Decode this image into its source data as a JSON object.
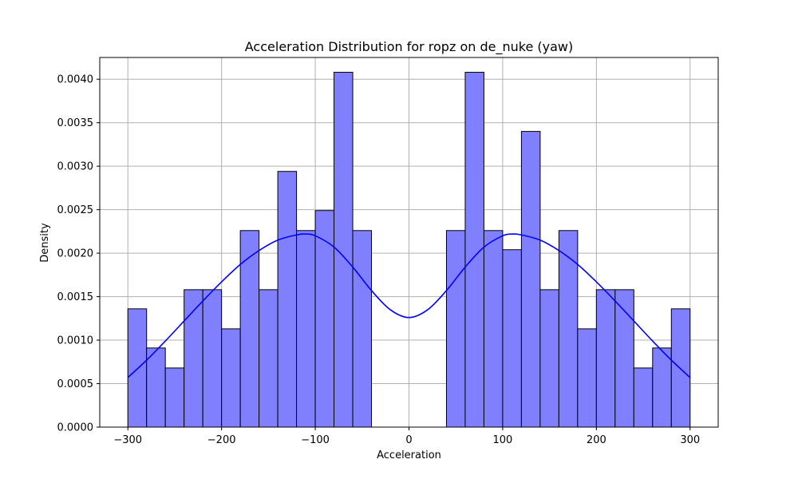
{
  "chart_data": {
    "type": "bar",
    "title": "Acceleration Distribution for ropz on de_nuke (yaw)",
    "xlabel": "Acceleration",
    "ylabel": "Density",
    "xlim": [
      -330,
      330
    ],
    "ylim": [
      0,
      0.00425
    ],
    "grid": true,
    "x_ticks": [
      -300,
      -200,
      -100,
      0,
      100,
      200,
      300
    ],
    "x_tick_labels": [
      "−300",
      "−200",
      "−100",
      "0",
      "100",
      "200",
      "300"
    ],
    "y_ticks": [
      0,
      0.0005,
      0.001,
      0.0015,
      0.002,
      0.0025,
      0.003,
      0.0035,
      0.004
    ],
    "y_tick_labels": [
      "0.0000",
      "0.0005",
      "0.0010",
      "0.0015",
      "0.0020",
      "0.0025",
      "0.0030",
      "0.0035",
      "0.0040"
    ],
    "histogram": {
      "bin_edges": [
        -300,
        -280,
        -260,
        -240,
        -220,
        -200,
        -180,
        -160,
        -140,
        -120,
        -100,
        -80,
        -60,
        -40,
        -20,
        0,
        20,
        40,
        60,
        80,
        100,
        120,
        140,
        160,
        180,
        200,
        220,
        240,
        260,
        280,
        300
      ],
      "values": [
        0.00136,
        0.00091,
        0.00068,
        0.00158,
        0.00158,
        0.00113,
        0.00226,
        0.00158,
        0.00294,
        0.00226,
        0.00249,
        0.00408,
        0.00226,
        0,
        0,
        0,
        0,
        0.00226,
        0.00408,
        0.00226,
        0.00204,
        0.0034,
        0.00158,
        0.00226,
        0.00113,
        0.00158,
        0.00158,
        0.00068,
        0.00091,
        0.00136
      ],
      "fill_color": "#8080ff",
      "edge_color": "#000000"
    },
    "kde": {
      "x": [
        -300,
        -280,
        -260,
        -240,
        -220,
        -200,
        -180,
        -160,
        -140,
        -120,
        -110,
        -100,
        -80,
        -60,
        -40,
        -20,
        0,
        20,
        40,
        60,
        80,
        100,
        110,
        120,
        140,
        160,
        180,
        200,
        220,
        240,
        260,
        280,
        300
      ],
      "y": [
        0.00057,
        0.00077,
        0.00099,
        0.00122,
        0.00145,
        0.00167,
        0.00187,
        0.00203,
        0.00215,
        0.00221,
        0.00222,
        0.0022,
        0.00207,
        0.00184,
        0.00157,
        0.00135,
        0.00126,
        0.00135,
        0.00157,
        0.00184,
        0.00207,
        0.0022,
        0.00222,
        0.00221,
        0.00215,
        0.00203,
        0.00187,
        0.00167,
        0.00145,
        0.00122,
        0.00099,
        0.00077,
        0.00057
      ],
      "color": "#0000ff"
    }
  }
}
